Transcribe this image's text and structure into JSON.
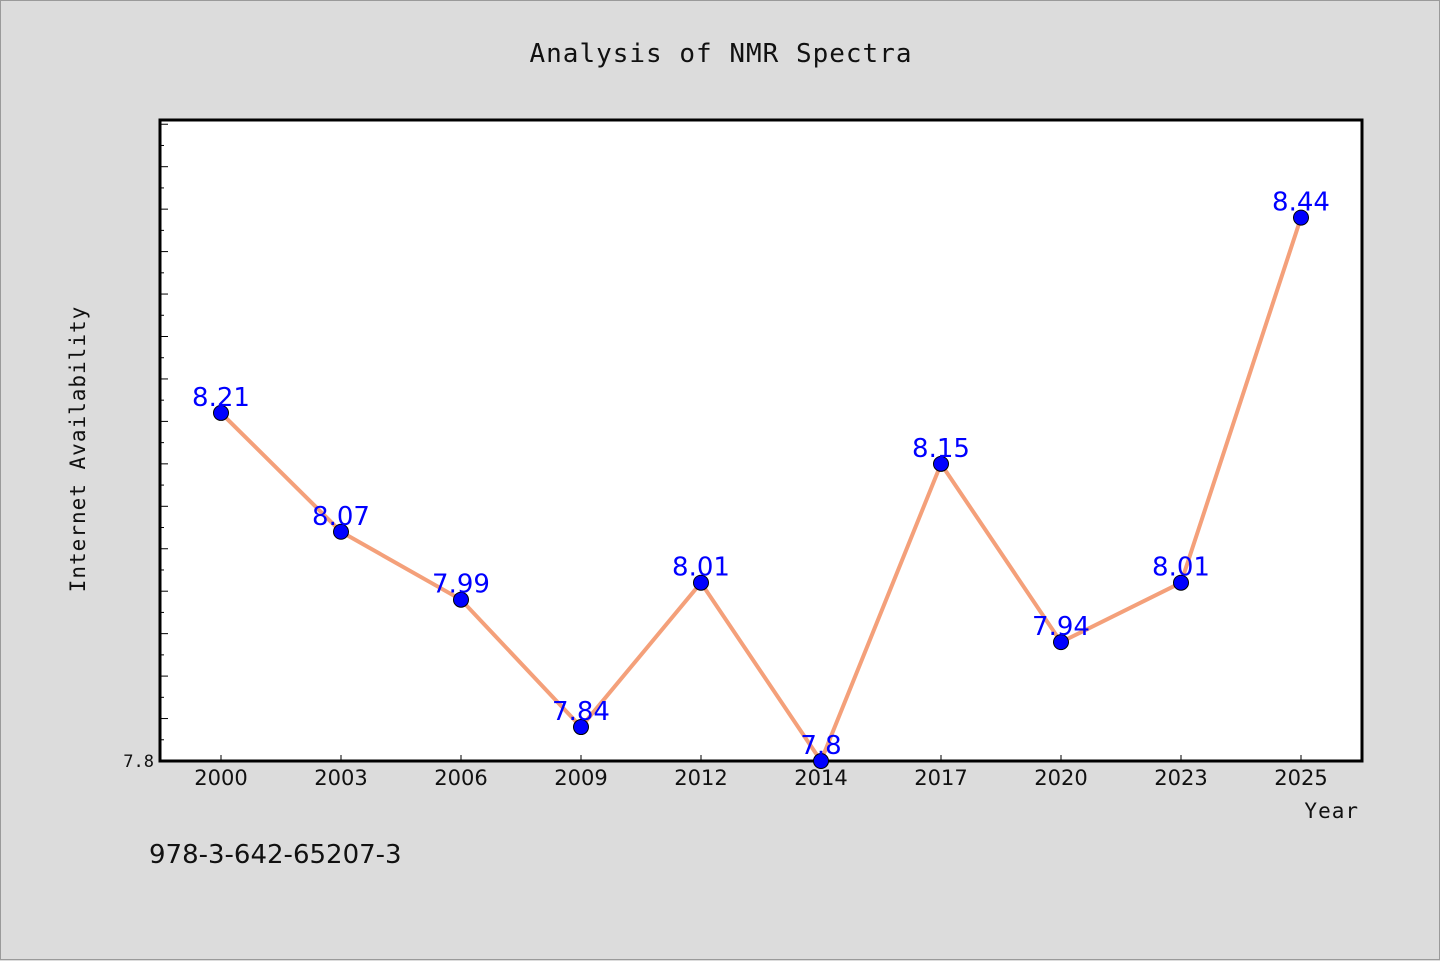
{
  "chart_data": {
    "type": "line",
    "title": "Analysis of NMR Spectra",
    "xlabel": "Year",
    "ylabel": "Internet Availability",
    "x": [
      "2000",
      "2003",
      "2006",
      "2009",
      "2012",
      "2014",
      "2017",
      "2020",
      "2023",
      "2025"
    ],
    "series": [
      {
        "values": [
          8.21,
          8.07,
          7.99,
          7.84,
          8.01,
          7.8,
          8.15,
          7.94,
          8.01,
          8.44
        ],
        "data_labels": [
          "8.21",
          "8.07",
          "7.99",
          "7.84",
          "8.01",
          "7.8",
          "8.15",
          "7.94",
          "8.01",
          "8.44"
        ],
        "line_color": "#f4a07a",
        "marker_color": "#0000ff"
      }
    ],
    "ylim": [
      7.8,
      8.555
    ],
    "ytick_labels": [
      "7.8"
    ],
    "grid": false,
    "legend": "none",
    "data_label_color": "#0000ff"
  },
  "footer": {
    "isbn": "978-3-642-65207-3"
  },
  "colors": {
    "background": "#dcdcdc",
    "plot_background": "#ffffff"
  }
}
